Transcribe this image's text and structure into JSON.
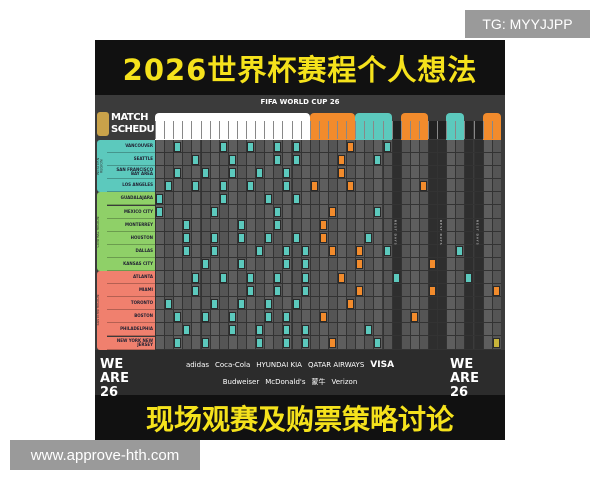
{
  "overlay": {
    "tg": "TG: MYYJJPP",
    "url": "www.approve-hth.com"
  },
  "poster": {
    "title": "2026世界杯赛程个人想法",
    "subtitle": "现场观赛及购票策略讨论",
    "header": "FIFA WORLD CUP 26",
    "logo": "MATCH SCHEDULE",
    "rest_label": "REST DAYS",
    "colors": {
      "group": "#5cc9bd",
      "knockout": "#f28b2c",
      "final": "#c8b43a",
      "western": "#5cc9bd",
      "central": "#8fd068",
      "eastern": "#f0806e"
    },
    "regions": [
      {
        "name": "WESTERN REGION",
        "rows": 4,
        "color": "#5cc9bd"
      },
      {
        "name": "CENTRAL REGION",
        "rows": 6,
        "color": "#8fd068"
      },
      {
        "name": "EASTERN REGION",
        "rows": 6,
        "color": "#f0806e"
      }
    ],
    "cities": [
      {
        "name": "VANCOUVER",
        "g": [
          2,
          7,
          10,
          13,
          15,
          25
        ],
        "k": [
          21
        ]
      },
      {
        "name": "SEATTLE",
        "g": [
          4,
          8,
          13,
          15,
          24
        ],
        "k": [
          20
        ]
      },
      {
        "name": "SAN FRANCISCO BAY AREA",
        "g": [
          2,
          5,
          8,
          11,
          14
        ],
        "k": [
          20
        ]
      },
      {
        "name": "LOS ANGELES",
        "g": [
          1,
          4,
          7,
          10,
          14
        ],
        "k": [
          17,
          21,
          29
        ]
      },
      {
        "name": "GUADALAJARA",
        "g": [
          0,
          7,
          12,
          15
        ],
        "k": []
      },
      {
        "name": "MEXICO CITY",
        "g": [
          0,
          6,
          13,
          24
        ],
        "k": [
          19
        ]
      },
      {
        "name": "MONTERREY",
        "g": [
          3,
          9,
          13
        ],
        "k": [
          18
        ]
      },
      {
        "name": "HOUSTON",
        "g": [
          3,
          6,
          9,
          12,
          15,
          23
        ],
        "k": [
          18
        ]
      },
      {
        "name": "DALLAS",
        "g": [
          3,
          6,
          11,
          14,
          16,
          25,
          33
        ],
        "k": [
          19,
          22
        ]
      },
      {
        "name": "KANSAS CITY",
        "g": [
          5,
          9,
          14,
          16
        ],
        "k": [
          22,
          30
        ]
      },
      {
        "name": "ATLANTA",
        "g": [
          4,
          7,
          10,
          13,
          16,
          26,
          34
        ],
        "k": [
          20
        ]
      },
      {
        "name": "MIAMI",
        "g": [
          4,
          10,
          13,
          16
        ],
        "k": [
          22,
          30,
          37
        ]
      },
      {
        "name": "TORONTO",
        "g": [
          1,
          6,
          9,
          12,
          15
        ],
        "k": [
          21
        ]
      },
      {
        "name": "BOSTON",
        "g": [
          2,
          5,
          8,
          12,
          14
        ],
        "k": [
          18,
          28
        ]
      },
      {
        "name": "PHILADELPHIA",
        "g": [
          3,
          8,
          11,
          14,
          16,
          23
        ],
        "k": []
      },
      {
        "name": "NEW YORK NEW JERSEY",
        "g": [
          2,
          5,
          11,
          14,
          16,
          24
        ],
        "k": [
          19
        ],
        "f": [
          37
        ]
      }
    ],
    "sponsors": {
      "brand_left": "WE ARE 26",
      "brand_right": "WE ARE 26",
      "row1": [
        "adidas",
        "Coca-Cola",
        "HYUNDAI KIA",
        "QATAR AIRWAYS",
        "VISA"
      ],
      "row2": [
        "Budweiser",
        "McDonald's",
        "蒙牛",
        "Verizon"
      ]
    }
  }
}
